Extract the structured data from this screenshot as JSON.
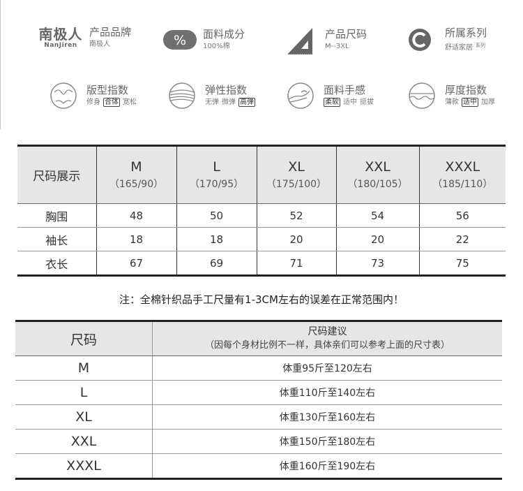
{
  "brand": {
    "logo_cn": "南极人",
    "logo_en": "NanJiren",
    "title": "产品品牌",
    "value": "南极人"
  },
  "features_top": [
    {
      "icon": "percent-icon",
      "title": "面料成分",
      "value": "100%棉"
    },
    {
      "icon": "ruler-triangle-icon",
      "title": "产品尺码",
      "value": "M--3XL"
    },
    {
      "icon": "copyright-c-icon",
      "title": "所属系列",
      "value": "舒适家居",
      "suffix": "系列"
    }
  ],
  "features_bottom": [
    {
      "icon": "body-fit-icon",
      "title": "版型指数",
      "options": [
        "修身",
        "合体",
        "宽松"
      ],
      "selected": 1
    },
    {
      "icon": "elastic-icon",
      "title": "弹性指数",
      "options": [
        "无弹",
        "微弹",
        "高弹"
      ],
      "selected": 2
    },
    {
      "icon": "hand-feel-icon",
      "title": "面料手感",
      "options": [
        "柔软",
        "适中",
        "挺拔"
      ],
      "selected": 0
    },
    {
      "icon": "thickness-icon",
      "title": "厚度指数",
      "options": [
        "薄款",
        "适中",
        "加厚"
      ],
      "selected": 1
    }
  ],
  "size_table": {
    "header": "尺码展示",
    "sizes": [
      {
        "size": "M",
        "body": "（165/90）"
      },
      {
        "size": "L",
        "body": "（170/95）"
      },
      {
        "size": "XL",
        "body": "（175/100）"
      },
      {
        "size": "XXL",
        "body": "（180/105）"
      },
      {
        "size": "XXXL",
        "body": "（185/110）"
      }
    ],
    "rows": [
      {
        "label": "胸围",
        "values": [
          "48",
          "50",
          "52",
          "54",
          "56"
        ]
      },
      {
        "label": "袖长",
        "values": [
          "18",
          "18",
          "20",
          "20",
          "22"
        ]
      },
      {
        "label": "衣长",
        "values": [
          "67",
          "69",
          "71",
          "73",
          "75"
        ]
      }
    ]
  },
  "note": "注：全棉针织品手工尺量有1-3CM左右的误差在正常范围内！",
  "advice_table": {
    "col1": "尺码",
    "col2_title": "尺码建议",
    "col2_sub": "（因每个身材比例不一样，具体亲们可以参考上面的尺寸表）",
    "rows": [
      {
        "size": "M",
        "advice": "体重95斤至120左右"
      },
      {
        "size": "L",
        "advice": "体重110斤至140左右"
      },
      {
        "size": "XL",
        "advice": "体重130斤至160左右"
      },
      {
        "size": "XXL",
        "advice": "体重150斤至180左右"
      },
      {
        "size": "XXXL",
        "advice": "体重160斤至190左右"
      }
    ]
  }
}
